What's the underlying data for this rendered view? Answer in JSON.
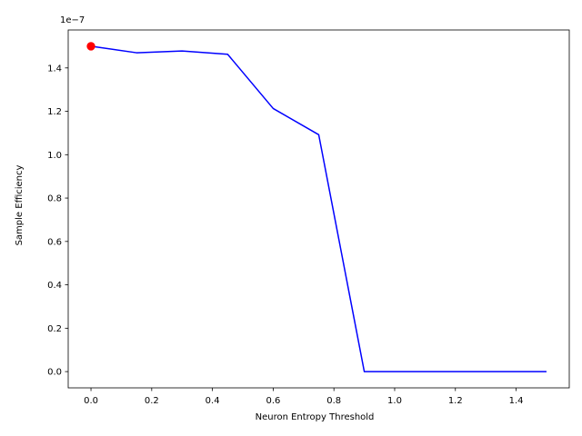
{
  "chart_data": {
    "type": "line",
    "xlabel": "Neuron Entropy Threshold",
    "ylabel": "Sample Efficiency",
    "y_offset_label": "1e−7",
    "xlim": [
      -0.075,
      1.575
    ],
    "ylim": [
      -0.075,
      1.575
    ],
    "x_ticks": [
      0.0,
      0.2,
      0.4,
      0.6,
      0.8,
      1.0,
      1.2,
      1.4
    ],
    "x_tick_labels": [
      "0.0",
      "0.2",
      "0.4",
      "0.6",
      "0.8",
      "1.0",
      "1.2",
      "1.4"
    ],
    "y_ticks": [
      0.0,
      0.2,
      0.4,
      0.6,
      0.8,
      1.0,
      1.2,
      1.4
    ],
    "y_tick_labels": [
      "0.0",
      "0.2",
      "0.4",
      "0.6",
      "0.8",
      "1.0",
      "1.2",
      "1.4"
    ],
    "grid": false,
    "series": [
      {
        "color": "#0000ff",
        "x": [
          0.0,
          0.15,
          0.3,
          0.45,
          0.6,
          0.75,
          0.9,
          1.05,
          1.2,
          1.35,
          1.5
        ],
        "y": [
          1.5,
          1.47,
          1.478,
          1.463,
          1.213,
          1.092,
          0.0,
          0.0,
          0.0,
          0.0,
          0.0
        ]
      }
    ],
    "highlight_point": {
      "x": 0.0,
      "y": 1.5,
      "color": "#ff0000"
    }
  }
}
